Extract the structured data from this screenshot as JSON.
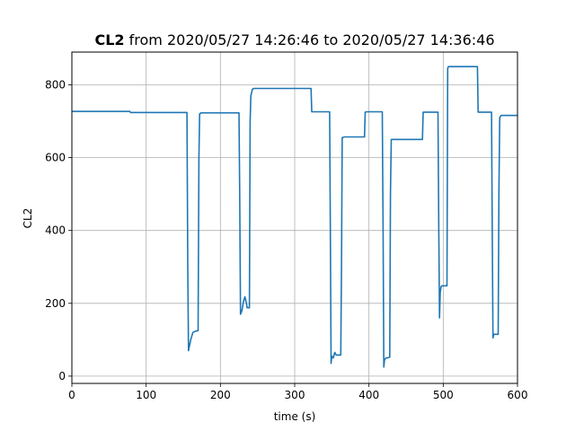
{
  "chart_data": {
    "type": "line",
    "title_bold": "CL2",
    "title_rest": " from 2020/05/27 14:26:46 to 2020/05/27 14:36:46",
    "xlabel": "time (s)",
    "ylabel": "CL2",
    "xlim": [
      0,
      600
    ],
    "ylim": [
      -20,
      890
    ],
    "xticks": [
      0,
      100,
      200,
      300,
      400,
      500,
      600
    ],
    "yticks": [
      0,
      200,
      400,
      600,
      800
    ],
    "grid": true,
    "line_color": "#1f77b4",
    "series": [
      {
        "x": [
          0,
          78,
          79,
          154,
          155,
          156,
          157,
          160,
          163,
          166,
          170,
          171,
          172,
          174,
          225,
          226,
          227,
          229,
          231,
          233,
          235,
          236,
          239,
          240,
          241,
          243,
          245,
          300,
          322,
          323,
          347,
          348,
          349,
          350,
          352,
          354,
          356,
          362,
          363,
          364,
          367,
          368,
          394,
          395,
          397,
          418,
          419,
          420,
          421,
          423,
          425,
          428,
          429,
          430,
          432,
          472,
          473,
          474,
          493,
          494,
          495,
          496,
          497,
          498,
          500,
          505,
          506,
          507,
          509,
          546,
          547,
          548,
          565,
          566,
          567,
          568,
          570,
          574,
          575,
          576,
          578,
          600
        ],
        "y": [
          727,
          727,
          724,
          724,
          724,
          300,
          70,
          100,
          120,
          123,
          125,
          600,
          720,
          723,
          723,
          500,
          170,
          180,
          205,
          218,
          200,
          188,
          188,
          700,
          770,
          788,
          790,
          790,
          790,
          726,
          726,
          400,
          35,
          55,
          50,
          65,
          58,
          58,
          300,
          655,
          657,
          657,
          657,
          725,
          726,
          726,
          400,
          25,
          45,
          50,
          50,
          52,
          500,
          650,
          650,
          650,
          725,
          725,
          725,
          400,
          160,
          230,
          245,
          248,
          248,
          248,
          845,
          850,
          850,
          850,
          725,
          725,
          725,
          400,
          105,
          115,
          115,
          115,
          500,
          710,
          716,
          716
        ]
      }
    ]
  }
}
